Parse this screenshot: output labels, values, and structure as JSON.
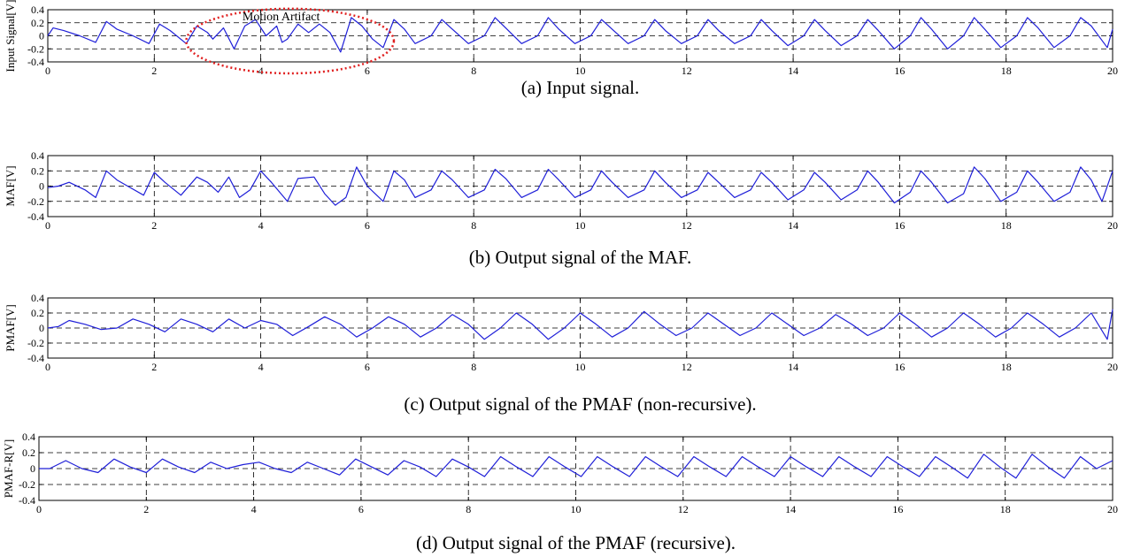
{
  "chart_data": [
    {
      "type": "line",
      "ylabel": "Input Signal[V]",
      "caption": "(a) Input signal.",
      "xlim": [
        0,
        20
      ],
      "ylim": [
        -0.4,
        0.4
      ],
      "xticks": [
        0,
        2,
        4,
        6,
        8,
        10,
        12,
        14,
        16,
        18,
        20
      ],
      "yticks": [
        -0.4,
        -0.2,
        0,
        0.2,
        0.4
      ],
      "ytick_labels": [
        "-0.4",
        "-0.2",
        "0",
        "0.2",
        "0.4"
      ],
      "grid": "dashed",
      "annotation": {
        "text": "Motion Artifact",
        "x_range": [
          2.6,
          6.5
        ]
      },
      "series": [
        {
          "color": "#1f1fd8",
          "x": [
            0,
            0.1,
            0.3,
            0.6,
            0.9,
            1.1,
            1.3,
            1.6,
            1.9,
            2.1,
            2.3,
            2.6,
            2.8,
            3.0,
            3.1,
            3.3,
            3.5,
            3.7,
            3.9,
            4.1,
            4.3,
            4.4,
            4.5,
            4.7,
            4.9,
            5.1,
            5.3,
            5.5,
            5.7,
            5.9,
            6.1,
            6.3,
            6.5,
            6.7,
            6.9,
            7.2,
            7.4,
            7.6,
            7.9,
            8.2,
            8.4,
            8.6,
            8.9,
            9.2,
            9.4,
            9.6,
            9.9,
            10.2,
            10.4,
            10.6,
            10.9,
            11.2,
            11.4,
            11.6,
            11.9,
            12.2,
            12.4,
            12.6,
            12.9,
            13.2,
            13.4,
            13.6,
            13.9,
            14.2,
            14.4,
            14.6,
            14.9,
            15.2,
            15.4,
            15.6,
            15.9,
            16.2,
            16.4,
            16.6,
            16.9,
            17.2,
            17.4,
            17.6,
            17.9,
            18.2,
            18.4,
            18.6,
            18.9,
            19.2,
            19.4,
            19.6,
            19.9,
            20.0
          ],
          "y": [
            0.0,
            0.12,
            0.08,
            0.0,
            -0.1,
            0.22,
            0.1,
            0.0,
            -0.12,
            0.18,
            0.08,
            -0.12,
            0.15,
            0.05,
            -0.05,
            0.12,
            -0.2,
            0.15,
            0.25,
            0.0,
            0.15,
            -0.1,
            -0.05,
            0.18,
            0.05,
            0.18,
            0.05,
            -0.25,
            0.28,
            0.15,
            -0.05,
            -0.18,
            0.25,
            0.1,
            -0.12,
            0.0,
            0.25,
            0.1,
            -0.12,
            0.0,
            0.28,
            0.12,
            -0.12,
            0.0,
            0.28,
            0.1,
            -0.12,
            0.0,
            0.25,
            0.1,
            -0.12,
            0.0,
            0.25,
            0.08,
            -0.12,
            0.0,
            0.25,
            0.08,
            -0.12,
            0.0,
            0.25,
            0.08,
            -0.15,
            0.0,
            0.25,
            0.08,
            -0.15,
            0.0,
            0.25,
            0.08,
            -0.2,
            0.0,
            0.28,
            0.1,
            -0.2,
            0.0,
            0.28,
            0.1,
            -0.18,
            0.0,
            0.28,
            0.12,
            -0.18,
            0.0,
            0.28,
            0.15,
            -0.18,
            0.1
          ]
        }
      ]
    },
    {
      "type": "line",
      "ylabel": "MAF[V]",
      "caption": "(b) Output signal of the MAF.",
      "xlim": [
        0,
        20
      ],
      "ylim": [
        -0.4,
        0.4
      ],
      "xticks": [
        0,
        2,
        4,
        6,
        8,
        10,
        12,
        14,
        16,
        18,
        20
      ],
      "yticks": [
        -0.4,
        -0.2,
        0,
        0.2,
        0.4
      ],
      "ytick_labels": [
        "-0.4",
        "-0.2",
        "0",
        "0.2",
        "0.4"
      ],
      "grid": "dashed",
      "series": [
        {
          "color": "#1f1fd8",
          "x": [
            0,
            0.2,
            0.4,
            0.7,
            0.9,
            1.1,
            1.3,
            1.5,
            1.8,
            2.0,
            2.2,
            2.5,
            2.8,
            3.0,
            3.2,
            3.4,
            3.6,
            3.8,
            4.0,
            4.2,
            4.5,
            4.7,
            5.0,
            5.2,
            5.4,
            5.6,
            5.8,
            6.0,
            6.3,
            6.5,
            6.7,
            6.9,
            7.2,
            7.4,
            7.6,
            7.9,
            8.2,
            8.4,
            8.6,
            8.9,
            9.2,
            9.4,
            9.6,
            9.9,
            10.2,
            10.4,
            10.6,
            10.9,
            11.2,
            11.4,
            11.6,
            11.9,
            12.2,
            12.4,
            12.6,
            12.9,
            13.2,
            13.4,
            13.6,
            13.9,
            14.2,
            14.4,
            14.6,
            14.9,
            15.2,
            15.4,
            15.6,
            15.9,
            16.2,
            16.4,
            16.6,
            16.9,
            17.2,
            17.4,
            17.6,
            17.9,
            18.2,
            18.4,
            18.6,
            18.9,
            19.2,
            19.4,
            19.6,
            19.8,
            20.0
          ],
          "y": [
            -0.02,
            0.0,
            0.05,
            -0.05,
            -0.15,
            0.2,
            0.08,
            0.0,
            -0.12,
            0.18,
            0.05,
            -0.12,
            0.12,
            0.05,
            -0.08,
            0.12,
            -0.15,
            -0.05,
            0.2,
            0.05,
            -0.2,
            0.1,
            0.12,
            -0.1,
            -0.25,
            -0.15,
            0.25,
            0.0,
            -0.2,
            0.2,
            0.08,
            -0.15,
            -0.05,
            0.2,
            0.08,
            -0.15,
            -0.05,
            0.22,
            0.1,
            -0.15,
            -0.05,
            0.22,
            0.08,
            -0.15,
            -0.05,
            0.2,
            0.05,
            -0.15,
            -0.05,
            0.2,
            0.05,
            -0.15,
            -0.05,
            0.18,
            0.05,
            -0.15,
            -0.05,
            0.18,
            0.05,
            -0.18,
            -0.05,
            0.18,
            0.05,
            -0.18,
            -0.05,
            0.2,
            0.05,
            -0.22,
            -0.08,
            0.2,
            0.05,
            -0.22,
            -0.1,
            0.25,
            0.1,
            -0.2,
            -0.08,
            0.2,
            0.05,
            -0.2,
            -0.08,
            0.25,
            0.08,
            -0.2,
            0.2
          ]
        }
      ]
    },
    {
      "type": "line",
      "ylabel": "PMAF[V]",
      "caption": "(c) Output signal of the PMAF (non-recursive).",
      "xlim": [
        0,
        20
      ],
      "ylim": [
        -0.4,
        0.4
      ],
      "xticks": [
        0,
        2,
        4,
        6,
        8,
        10,
        12,
        14,
        16,
        18,
        20
      ],
      "yticks": [
        -0.4,
        -0.2,
        0,
        0.2,
        0.4
      ],
      "ytick_labels": [
        "-0.4",
        "-0.2",
        "0",
        "0.2",
        "0.4"
      ],
      "grid": "dashed",
      "series": [
        {
          "color": "#1f1fd8",
          "x": [
            0,
            0.2,
            0.4,
            0.7,
            1.0,
            1.3,
            1.6,
            1.9,
            2.2,
            2.5,
            2.8,
            3.1,
            3.4,
            3.7,
            4.0,
            4.3,
            4.6,
            4.9,
            5.2,
            5.5,
            5.8,
            6.1,
            6.4,
            6.7,
            7.0,
            7.3,
            7.6,
            7.9,
            8.2,
            8.5,
            8.8,
            9.1,
            9.4,
            9.7,
            10.0,
            10.3,
            10.6,
            10.9,
            11.2,
            11.5,
            11.8,
            12.1,
            12.4,
            12.7,
            13.0,
            13.3,
            13.6,
            13.9,
            14.2,
            14.5,
            14.8,
            15.1,
            15.4,
            15.7,
            16.0,
            16.3,
            16.6,
            16.9,
            17.2,
            17.5,
            17.8,
            18.1,
            18.4,
            18.7,
            19.0,
            19.3,
            19.6,
            19.9,
            20.0
          ],
          "y": [
            0.0,
            0.02,
            0.1,
            0.05,
            -0.02,
            0.0,
            0.12,
            0.05,
            -0.05,
            0.12,
            0.05,
            -0.05,
            0.12,
            0.0,
            0.1,
            0.05,
            -0.1,
            0.02,
            0.15,
            0.05,
            -0.12,
            0.0,
            0.15,
            0.05,
            -0.12,
            0.0,
            0.18,
            0.05,
            -0.15,
            0.0,
            0.2,
            0.05,
            -0.15,
            0.0,
            0.2,
            0.05,
            -0.12,
            0.0,
            0.22,
            0.05,
            -0.1,
            0.0,
            0.2,
            0.05,
            -0.1,
            0.0,
            0.2,
            0.05,
            -0.1,
            0.0,
            0.18,
            0.05,
            -0.1,
            0.0,
            0.2,
            0.05,
            -0.12,
            0.0,
            0.2,
            0.05,
            -0.12,
            0.0,
            0.2,
            0.05,
            -0.12,
            0.0,
            0.2,
            -0.15,
            0.25
          ]
        }
      ]
    },
    {
      "type": "line",
      "ylabel": "PMAF-R[V]",
      "caption": "(d) Output signal of the PMAF (recursive).",
      "xlim": [
        0,
        20
      ],
      "ylim": [
        -0.4,
        0.4
      ],
      "xticks": [
        0,
        2,
        4,
        6,
        8,
        10,
        12,
        14,
        16,
        18,
        20
      ],
      "yticks": [
        -0.4,
        -0.2,
        0,
        0.2,
        0.4
      ],
      "ytick_labels": [
        "-0.4",
        "-0.2",
        "0",
        "0.2",
        "0.4"
      ],
      "grid": "dashed",
      "series": [
        {
          "color": "#1f1fd8",
          "x": [
            0,
            0.2,
            0.5,
            0.8,
            1.1,
            1.4,
            1.7,
            2.0,
            2.3,
            2.6,
            2.9,
            3.2,
            3.5,
            3.8,
            4.1,
            4.4,
            4.7,
            5.0,
            5.3,
            5.6,
            5.9,
            6.2,
            6.5,
            6.8,
            7.1,
            7.4,
            7.7,
            8.0,
            8.3,
            8.6,
            8.9,
            9.2,
            9.5,
            9.8,
            10.1,
            10.4,
            10.7,
            11.0,
            11.3,
            11.6,
            11.9,
            12.2,
            12.5,
            12.8,
            13.1,
            13.4,
            13.7,
            14.0,
            14.3,
            14.6,
            14.9,
            15.2,
            15.5,
            15.8,
            16.1,
            16.4,
            16.7,
            17.0,
            17.3,
            17.6,
            17.9,
            18.2,
            18.5,
            18.8,
            19.1,
            19.4,
            19.7,
            20.0
          ],
          "y": [
            0.0,
            0.0,
            0.1,
            0.0,
            -0.05,
            0.12,
            0.02,
            -0.05,
            0.12,
            0.02,
            -0.05,
            0.08,
            0.0,
            0.05,
            0.08,
            0.0,
            -0.05,
            0.08,
            0.0,
            -0.08,
            0.12,
            0.02,
            -0.08,
            0.1,
            0.02,
            -0.1,
            0.12,
            0.02,
            -0.1,
            0.15,
            0.02,
            -0.1,
            0.15,
            0.02,
            -0.1,
            0.15,
            0.02,
            -0.1,
            0.15,
            0.02,
            -0.1,
            0.15,
            0.02,
            -0.1,
            0.15,
            0.02,
            -0.1,
            0.15,
            0.02,
            -0.1,
            0.15,
            0.02,
            -0.1,
            0.15,
            0.02,
            -0.1,
            0.15,
            0.02,
            -0.12,
            0.18,
            0.02,
            -0.12,
            0.18,
            0.02,
            -0.12,
            0.15,
            0.0,
            0.1
          ]
        }
      ]
    }
  ]
}
